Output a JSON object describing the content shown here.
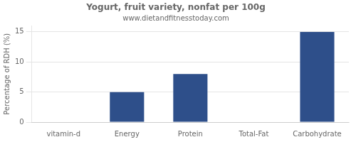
{
  "chart_data": {
    "type": "bar",
    "title": "Yogurt, fruit variety, nonfat per 100g",
    "subtitle": "www.dietandfitnesstoday.com",
    "categories": [
      "vitamin-d",
      "Energy",
      "Protein",
      "Total-Fat",
      "Carbohydrate"
    ],
    "values": [
      0,
      5,
      8,
      0,
      15
    ],
    "color": "#2e4f8a",
    "ylabel": "Percentage of RDH (%)",
    "ylim": [
      0,
      16
    ],
    "yticks": [
      0,
      5,
      10,
      15
    ],
    "grid": true
  }
}
